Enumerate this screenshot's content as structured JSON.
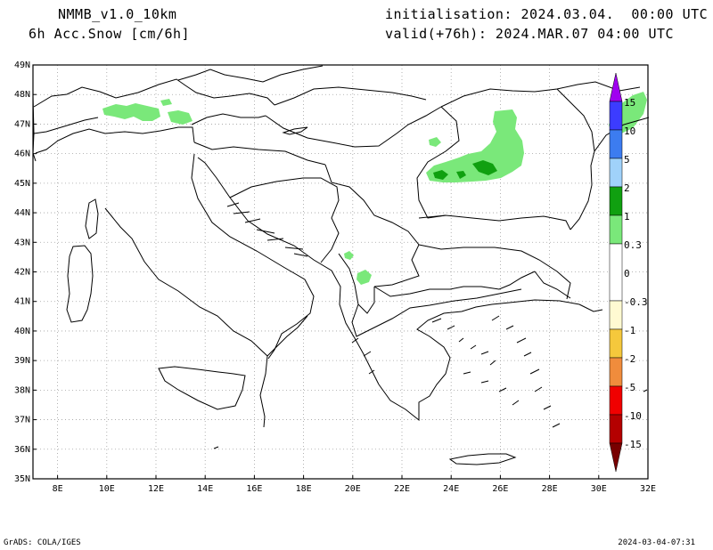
{
  "header": {
    "model": "NMMB_v1.0_10km",
    "field": "6h Acc.Snow [cm/6h]",
    "init": "initialisation: 2024.03.04.  00:00 UTC",
    "valid": "valid(+76h): 2024.MAR.07 04:00 UTC"
  },
  "footer": {
    "software": "GrADS: COLA/IGES",
    "timestamp": "2024-03-04-07:31"
  },
  "map": {
    "lat_labels": [
      "49N",
      "48N",
      "47N",
      "46N",
      "45N",
      "44N",
      "43N",
      "42N",
      "41N",
      "40N",
      "39N",
      "38N",
      "37N",
      "36N",
      "35N"
    ],
    "lon_labels": [
      "8E",
      "10E",
      "12E",
      "14E",
      "16E",
      "18E",
      "20E",
      "22E",
      "24E",
      "26E",
      "28E",
      "30E",
      "32E"
    ],
    "lat_range": [
      35,
      49
    ],
    "lon_range": [
      7,
      32
    ]
  },
  "colorbar": {
    "labels": [
      "15",
      "10",
      "5",
      "2",
      "1",
      "0.3",
      "0",
      "-0.3",
      "-1",
      "-2",
      "-5",
      "-10",
      "-15"
    ],
    "colors_positive": [
      "#a000f0",
      "#3c3cff",
      "#3c7cf0",
      "#78b4f0",
      "#a0d2fa",
      "#10a010",
      "#7ae87a"
    ],
    "colors_negative": [
      "#fffad2",
      "#fff0a0",
      "#f5c83c",
      "#f08c3c",
      "#f00000",
      "#b40000",
      "#780000"
    ]
  },
  "snow_colors": {
    "light": "#7ae87a",
    "moderate": "#10a010"
  }
}
